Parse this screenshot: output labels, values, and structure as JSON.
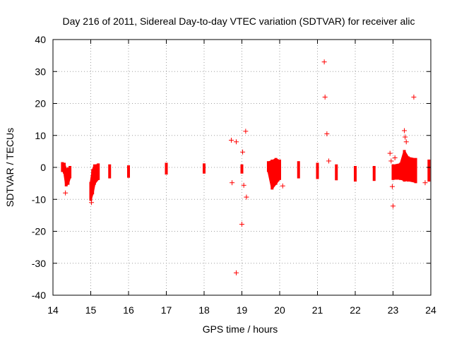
{
  "chart_data": {
    "type": "scatter",
    "title": "Day 216 of 2011, Sidereal Day-to-day VTEC variation (SDTVAR) for receiver alic",
    "xlabel": "GPS time / hours",
    "ylabel": "SDTVAR / TECUs",
    "xlim": [
      14,
      24
    ],
    "ylim": [
      -40,
      40
    ],
    "xticks": [
      "14",
      "15",
      "16",
      "17",
      "18",
      "19",
      "20",
      "21",
      "22",
      "23",
      "24"
    ],
    "yticks": [
      "40",
      "30",
      "20",
      "10",
      "0",
      "-10",
      "-20",
      "-30",
      "-40"
    ],
    "grid": true,
    "marker": "+",
    "series_color": "#ff0000",
    "dense_band": [
      {
        "x": 14.25,
        "lo": -1.0,
        "hi": 1.2
      },
      {
        "x": 14.3,
        "lo": -1.5,
        "hi": 1.0
      },
      {
        "x": 14.35,
        "lo": -5.5,
        "hi": -1.0
      },
      {
        "x": 14.4,
        "lo": -5.0,
        "hi": -0.5
      },
      {
        "x": 14.45,
        "lo": -3.0,
        "hi": 0.0
      },
      {
        "x": 15.0,
        "lo": -10.0,
        "hi": -5.0
      },
      {
        "x": 15.05,
        "lo": -8.0,
        "hi": -1.0
      },
      {
        "x": 15.1,
        "lo": -5.0,
        "hi": 0.5
      },
      {
        "x": 15.2,
        "lo": -3.5,
        "hi": 0.8
      },
      {
        "x": 15.5,
        "lo": -3.0,
        "hi": 0.5
      },
      {
        "x": 16.0,
        "lo": -2.8,
        "hi": 0.2
      },
      {
        "x": 17.0,
        "lo": -1.8,
        "hi": 1.0
      },
      {
        "x": 18.0,
        "lo": -1.5,
        "hi": 0.8
      },
      {
        "x": 19.0,
        "lo": -1.5,
        "hi": 0.5
      },
      {
        "x": 19.7,
        "lo": -1.0,
        "hi": 1.5
      },
      {
        "x": 19.8,
        "lo": -6.5,
        "hi": 2.0
      },
      {
        "x": 19.9,
        "lo": -5.0,
        "hi": 2.5
      },
      {
        "x": 20.0,
        "lo": -3.5,
        "hi": 2.0
      },
      {
        "x": 20.5,
        "lo": -3.0,
        "hi": 1.5
      },
      {
        "x": 21.0,
        "lo": -3.2,
        "hi": 1.0
      },
      {
        "x": 21.5,
        "lo": -3.6,
        "hi": 0.5
      },
      {
        "x": 22.0,
        "lo": -4.0,
        "hi": 0.0
      },
      {
        "x": 22.5,
        "lo": -3.8,
        "hi": 0.0
      },
      {
        "x": 23.0,
        "lo": -3.5,
        "hi": 0.5
      },
      {
        "x": 23.2,
        "lo": -3.5,
        "hi": 1.0
      },
      {
        "x": 23.3,
        "lo": -4.0,
        "hi": 5.0
      },
      {
        "x": 23.4,
        "lo": -4.0,
        "hi": 3.0
      },
      {
        "x": 23.6,
        "lo": -4.5,
        "hi": 2.5
      },
      {
        "x": 23.95,
        "lo": -4.0,
        "hi": 2.0
      }
    ],
    "outliers": [
      {
        "x": 14.33,
        "y": -8.0
      },
      {
        "x": 15.02,
        "y": -11.0
      },
      {
        "x": 18.72,
        "y": 8.5
      },
      {
        "x": 18.74,
        "y": -4.8
      },
      {
        "x": 18.85,
        "y": 8.0
      },
      {
        "x": 18.85,
        "y": -33.0
      },
      {
        "x": 19.0,
        "y": -17.8
      },
      {
        "x": 19.02,
        "y": 4.8
      },
      {
        "x": 19.05,
        "y": -5.6
      },
      {
        "x": 19.1,
        "y": 11.3
      },
      {
        "x": 19.12,
        "y": -9.3
      },
      {
        "x": 20.08,
        "y": -5.8
      },
      {
        "x": 21.18,
        "y": 33.0
      },
      {
        "x": 21.2,
        "y": 22.0
      },
      {
        "x": 21.25,
        "y": 10.5
      },
      {
        "x": 21.3,
        "y": 2.0
      },
      {
        "x": 22.92,
        "y": 4.4
      },
      {
        "x": 22.95,
        "y": 2.0
      },
      {
        "x": 22.98,
        "y": -6.0
      },
      {
        "x": 23.0,
        "y": -12.1
      },
      {
        "x": 23.05,
        "y": 3.0
      },
      {
        "x": 23.3,
        "y": 11.5
      },
      {
        "x": 23.32,
        "y": 9.5
      },
      {
        "x": 23.35,
        "y": 8.0
      },
      {
        "x": 23.55,
        "y": 22.0
      },
      {
        "x": 23.85,
        "y": -4.8
      }
    ]
  }
}
